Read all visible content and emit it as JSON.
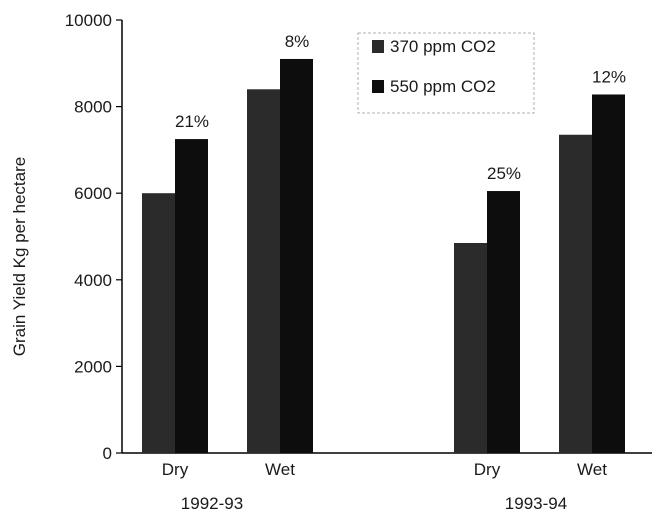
{
  "chart_data": {
    "type": "bar",
    "title": "",
    "xlabel": "",
    "ylabel": "Grain Yield  Kg per hectare",
    "ylim": [
      0,
      10000
    ],
    "yticks": [
      0,
      2000,
      4000,
      6000,
      8000,
      10000
    ],
    "grid": false,
    "legend_position": "top-right",
    "groups": [
      {
        "name": "1992-93",
        "categories": [
          {
            "label": "Dry",
            "values": [
              6000,
              7250
            ],
            "annotation": "21%"
          },
          {
            "label": "Wet",
            "values": [
              8400,
              9100
            ],
            "annotation": "8%"
          }
        ]
      },
      {
        "name": "1993-94",
        "categories": [
          {
            "label": "Dry",
            "values": [
              4850,
              6050
            ],
            "annotation": "25%"
          },
          {
            "label": "Wet",
            "values": [
              7350,
              8280
            ],
            "annotation": "12%"
          }
        ]
      }
    ],
    "series": [
      {
        "name": "370 ppm CO2",
        "color": "#2b2b2b"
      },
      {
        "name": "550 ppm CO2",
        "color": "#0d0d0d"
      }
    ]
  }
}
